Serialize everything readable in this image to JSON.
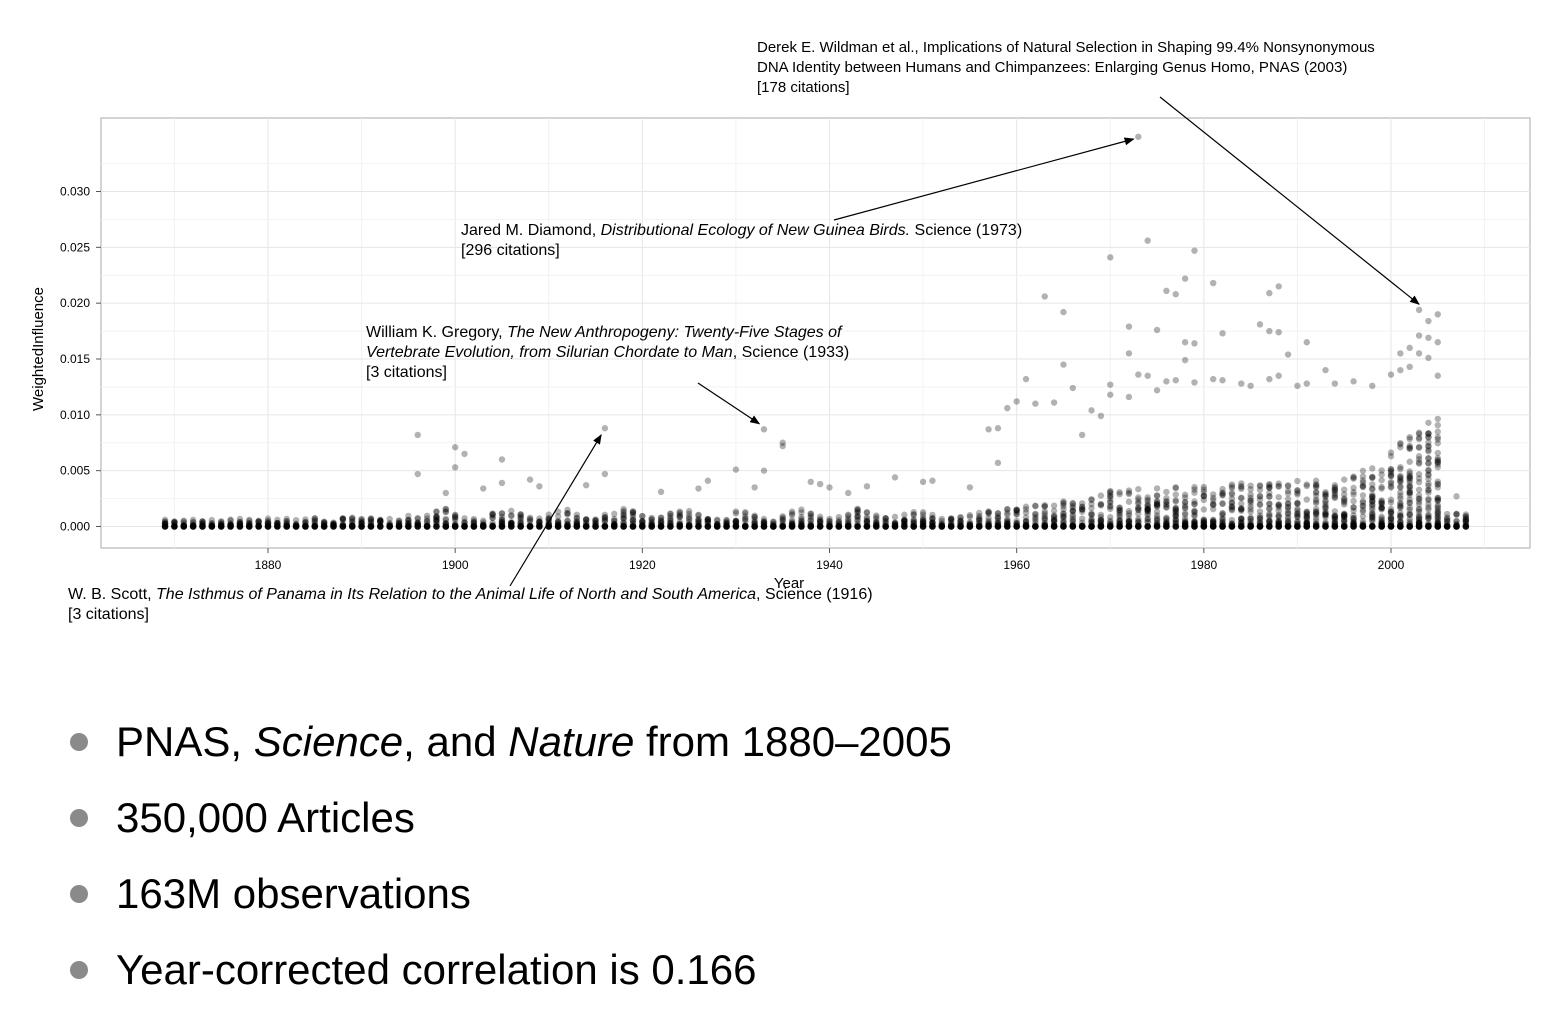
{
  "chart_data": {
    "type": "scatter",
    "xlabel": "Year",
    "ylabel": "WeightedInfluence",
    "xlim": [
      1865,
      2010
    ],
    "ylim": [
      -0.002,
      0.0365
    ],
    "x_ticks": [
      1880,
      1900,
      1920,
      1940,
      1960,
      1980,
      2000
    ],
    "y_ticks": [
      0.0,
      0.005,
      0.01,
      0.015,
      0.02,
      0.025,
      0.03
    ],
    "y_tick_labels": [
      "0.000",
      "0.005",
      "0.010",
      "0.015",
      "0.020",
      "0.025",
      "0.030"
    ],
    "x_tick_labels": [
      "1880",
      "1900",
      "1920",
      "1940",
      "1960",
      "1980",
      "2000"
    ],
    "grid": true,
    "point_color": "#000000",
    "point_opacity": 0.3,
    "year_range": [
      1869,
      2008
    ],
    "outliers": [
      {
        "x": 1896,
        "y": 0.0082
      },
      {
        "x": 1896,
        "y": 0.0047
      },
      {
        "x": 1899,
        "y": 0.003
      },
      {
        "x": 1900,
        "y": 0.0071
      },
      {
        "x": 1900,
        "y": 0.0053
      },
      {
        "x": 1901,
        "y": 0.0065
      },
      {
        "x": 1903,
        "y": 0.0034
      },
      {
        "x": 1905,
        "y": 0.006
      },
      {
        "x": 1905,
        "y": 0.0039
      },
      {
        "x": 1908,
        "y": 0.0042
      },
      {
        "x": 1909,
        "y": 0.0036
      },
      {
        "x": 1914,
        "y": 0.0037
      },
      {
        "x": 1916,
        "y": 0.0088
      },
      {
        "x": 1916,
        "y": 0.0047
      },
      {
        "x": 1922,
        "y": 0.0031
      },
      {
        "x": 1926,
        "y": 0.0034
      },
      {
        "x": 1927,
        "y": 0.0041
      },
      {
        "x": 1930,
        "y": 0.0051
      },
      {
        "x": 1932,
        "y": 0.0035
      },
      {
        "x": 1933,
        "y": 0.0087
      },
      {
        "x": 1933,
        "y": 0.005
      },
      {
        "x": 1935,
        "y": 0.0075
      },
      {
        "x": 1935,
        "y": 0.0072
      },
      {
        "x": 1938,
        "y": 0.004
      },
      {
        "x": 1939,
        "y": 0.0038
      },
      {
        "x": 1940,
        "y": 0.0035
      },
      {
        "x": 1942,
        "y": 0.003
      },
      {
        "x": 1944,
        "y": 0.0036
      },
      {
        "x": 1947,
        "y": 0.0044
      },
      {
        "x": 1950,
        "y": 0.004
      },
      {
        "x": 1951,
        "y": 0.0041
      },
      {
        "x": 1955,
        "y": 0.0035
      },
      {
        "x": 1957,
        "y": 0.0087
      },
      {
        "x": 1958,
        "y": 0.0088
      },
      {
        "x": 1958,
        "y": 0.0057
      },
      {
        "x": 1959,
        "y": 0.0106
      },
      {
        "x": 1960,
        "y": 0.0112
      },
      {
        "x": 1961,
        "y": 0.0132
      },
      {
        "x": 1962,
        "y": 0.011
      },
      {
        "x": 1963,
        "y": 0.0206
      },
      {
        "x": 1964,
        "y": 0.0111
      },
      {
        "x": 1965,
        "y": 0.0192
      },
      {
        "x": 1965,
        "y": 0.0145
      },
      {
        "x": 1966,
        "y": 0.0124
      },
      {
        "x": 1967,
        "y": 0.0082
      },
      {
        "x": 1968,
        "y": 0.0104
      },
      {
        "x": 1969,
        "y": 0.0099
      },
      {
        "x": 1970,
        "y": 0.0241
      },
      {
        "x": 1970,
        "y": 0.0127
      },
      {
        "x": 1970,
        "y": 0.0118
      },
      {
        "x": 1972,
        "y": 0.0179
      },
      {
        "x": 1972,
        "y": 0.0155
      },
      {
        "x": 1972,
        "y": 0.0116
      },
      {
        "x": 1973,
        "y": 0.0349
      },
      {
        "x": 1973,
        "y": 0.0136
      },
      {
        "x": 1974,
        "y": 0.0256
      },
      {
        "x": 1974,
        "y": 0.0135
      },
      {
        "x": 1975,
        "y": 0.0176
      },
      {
        "x": 1975,
        "y": 0.0122
      },
      {
        "x": 1976,
        "y": 0.0211
      },
      {
        "x": 1976,
        "y": 0.013
      },
      {
        "x": 1977,
        "y": 0.0208
      },
      {
        "x": 1977,
        "y": 0.0131
      },
      {
        "x": 1978,
        "y": 0.0222
      },
      {
        "x": 1978,
        "y": 0.0165
      },
      {
        "x": 1978,
        "y": 0.0149
      },
      {
        "x": 1979,
        "y": 0.0247
      },
      {
        "x": 1979,
        "y": 0.0164
      },
      {
        "x": 1979,
        "y": 0.0129
      },
      {
        "x": 1981,
        "y": 0.0218
      },
      {
        "x": 1981,
        "y": 0.0132
      },
      {
        "x": 1982,
        "y": 0.0173
      },
      {
        "x": 1982,
        "y": 0.0131
      },
      {
        "x": 1984,
        "y": 0.0128
      },
      {
        "x": 1985,
        "y": 0.0126
      },
      {
        "x": 1986,
        "y": 0.0181
      },
      {
        "x": 1987,
        "y": 0.0209
      },
      {
        "x": 1987,
        "y": 0.0175
      },
      {
        "x": 1987,
        "y": 0.0132
      },
      {
        "x": 1988,
        "y": 0.0215
      },
      {
        "x": 1988,
        "y": 0.0174
      },
      {
        "x": 1988,
        "y": 0.0135
      },
      {
        "x": 1989,
        "y": 0.0154
      },
      {
        "x": 1990,
        "y": 0.0126
      },
      {
        "x": 1991,
        "y": 0.0165
      },
      {
        "x": 1991,
        "y": 0.0128
      },
      {
        "x": 1993,
        "y": 0.014
      },
      {
        "x": 1994,
        "y": 0.0128
      },
      {
        "x": 1996,
        "y": 0.013
      },
      {
        "x": 1998,
        "y": 0.0126
      },
      {
        "x": 2000,
        "y": 0.0136
      },
      {
        "x": 2001,
        "y": 0.0155
      },
      {
        "x": 2001,
        "y": 0.014
      },
      {
        "x": 2002,
        "y": 0.016
      },
      {
        "x": 2002,
        "y": 0.0143
      },
      {
        "x": 2003,
        "y": 0.0194
      },
      {
        "x": 2003,
        "y": 0.0171
      },
      {
        "x": 2003,
        "y": 0.0155
      },
      {
        "x": 2004,
        "y": 0.0184
      },
      {
        "x": 2004,
        "y": 0.0169
      },
      {
        "x": 2004,
        "y": 0.0151
      },
      {
        "x": 2005,
        "y": 0.019
      },
      {
        "x": 2005,
        "y": 0.0165
      },
      {
        "x": 2005,
        "y": 0.0135
      },
      {
        "x": 2007,
        "y": 0.0027
      }
    ],
    "annotations": [
      {
        "id": "wildman",
        "author": "Derek E. Wildman et al., Implications of Natural Selection in Shaping 99.4% Nonsynonymous",
        "line2": "DNA Identity between Humans and Chimpanzees: Enlarging Genus Homo, PNAS (2003)",
        "line3": "[178 citations]",
        "target": {
          "x": 2003,
          "y": 0.0199
        }
      },
      {
        "id": "diamond",
        "author": "Jared M. Diamond, ",
        "title": "Distributional Ecology of New Guinea Birds.",
        "suffix": " Science (1973)",
        "line2": "[296 citations]",
        "target": {
          "x": 1972.5,
          "y": 0.0347
        }
      },
      {
        "id": "gregory",
        "author": "William K. Gregory, ",
        "title": "The New Anthropogeny: Twenty-Five Stages of",
        "title2": "Vertebrate Evolution, from Silurian Chordate to Man",
        "suffix": ", Science (1933)",
        "line3": "[3 citations]",
        "target": {
          "x": 1932.5,
          "y": 0.0092
        }
      },
      {
        "id": "scott",
        "author": "W. B. Scott, ",
        "title": "The Isthmus of Panama in Its Relation to the Animal Life of North and South America",
        "suffix": ", Science (1916)",
        "line2": "[3 citations]",
        "target": {
          "x": 1915.6,
          "y": 0.0082
        }
      }
    ]
  },
  "bullets": [
    {
      "pre": "PNAS, ",
      "em1": "Science",
      "mid": ", and ",
      "em2": "Nature",
      "post": " from 1880–2005"
    },
    {
      "text": "350,000 Articles"
    },
    {
      "text": "163M observations"
    },
    {
      "text": "Year-corrected correlation is 0.166"
    }
  ]
}
